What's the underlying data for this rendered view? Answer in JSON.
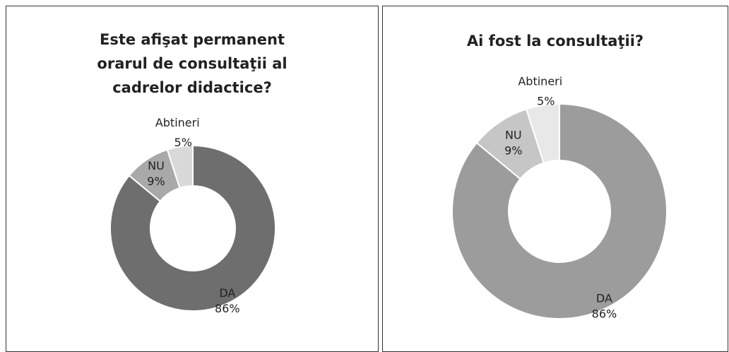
{
  "chart_data": [
    {
      "type": "donut",
      "title": "Este afişat permanent orarul de consultaţii al cadrelor didactice?",
      "categories": [
        "DA",
        "NU",
        "Abtineri"
      ],
      "values": [
        86,
        9,
        5
      ],
      "value_labels": [
        "86%",
        "9%",
        "5%"
      ],
      "colors": [
        "#6e6e6e",
        "#a9a9a9",
        "#d9d9d9"
      ]
    },
    {
      "type": "donut",
      "title": "Ai fost la consultaţii?",
      "categories": [
        "DA",
        "NU",
        "Abtineri"
      ],
      "values": [
        86,
        9,
        5
      ],
      "value_labels": [
        "86%",
        "9%",
        "5%"
      ],
      "colors": [
        "#9c9c9c",
        "#c6c6c6",
        "#e8e8e8"
      ]
    }
  ]
}
